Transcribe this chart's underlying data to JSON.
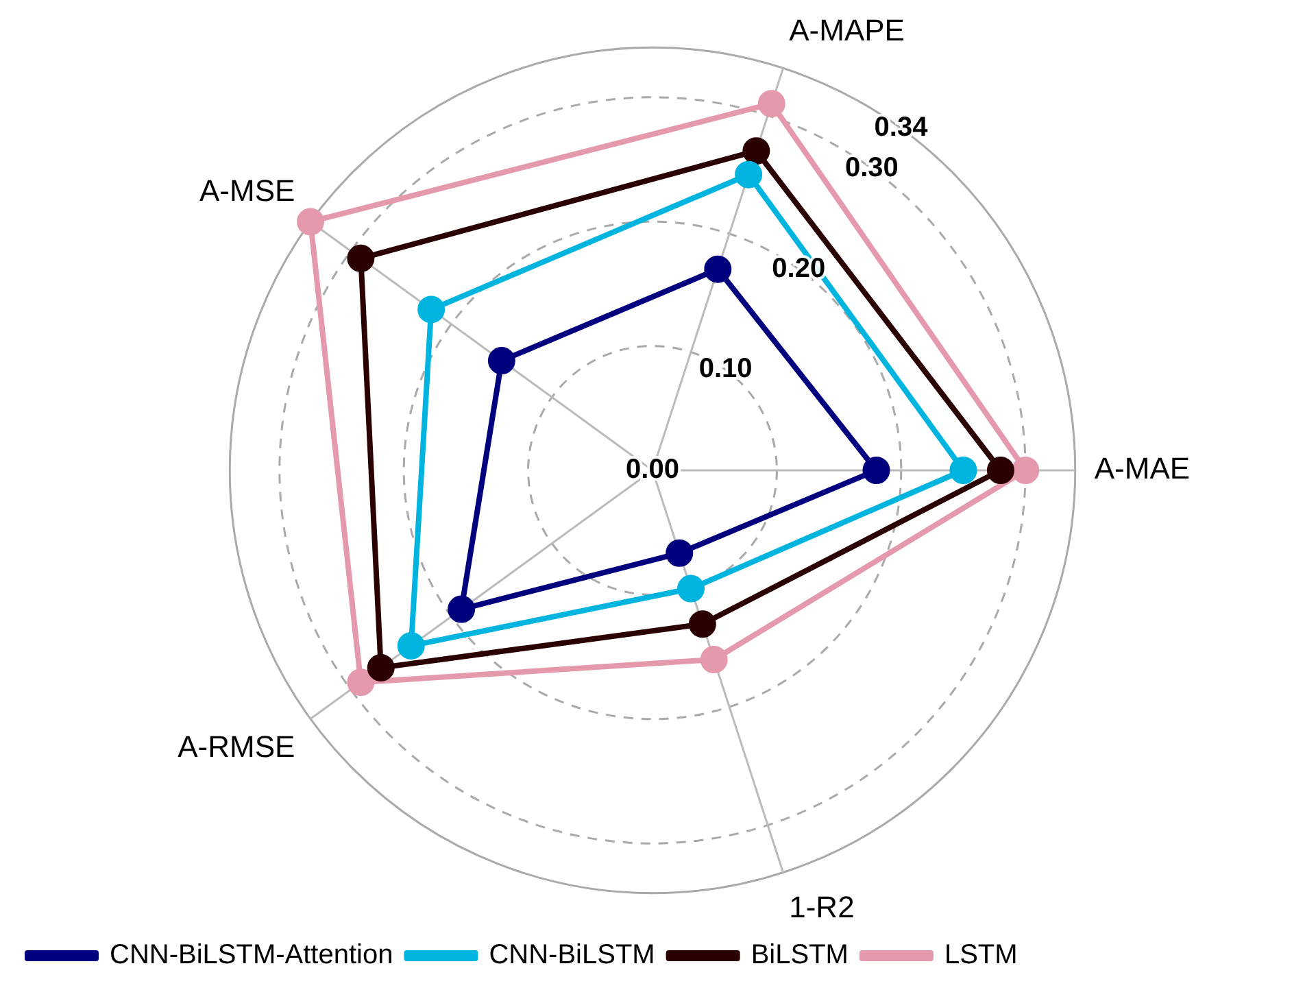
{
  "chart_data": {
    "type": "radar",
    "categories": [
      "A-MAPE",
      "A-MAE",
      "1-R2",
      "A-RMSE",
      "A-MSE"
    ],
    "series": [
      {
        "name": "CNN-BiLSTM-Attention",
        "color": "#00007f",
        "values": [
          0.17,
          0.18,
          0.07,
          0.19,
          0.15
        ]
      },
      {
        "name": "CNN-BiLSTM",
        "color": "#00b4e0",
        "values": [
          0.25,
          0.25,
          0.1,
          0.24,
          0.22
        ]
      },
      {
        "name": "BiLSTM",
        "color": "#2a0000",
        "values": [
          0.27,
          0.28,
          0.13,
          0.27,
          0.29
        ]
      },
      {
        "name": "LSTM",
        "color": "#e49aac",
        "values": [
          0.31,
          0.3,
          0.16,
          0.29,
          0.34
        ]
      }
    ],
    "ylim": [
      0,
      0.34
    ],
    "yticks": [
      {
        "value": 0,
        "label": "0.00"
      },
      {
        "value": 0.1,
        "label": "0.10"
      },
      {
        "value": 0.2,
        "label": "0.20"
      },
      {
        "value": 0.3,
        "label": "0.30"
      },
      {
        "value": 0.34,
        "label": "0.34"
      }
    ],
    "grid": true,
    "legend": "bottom left",
    "marker": "circle",
    "line_style": "solid"
  }
}
